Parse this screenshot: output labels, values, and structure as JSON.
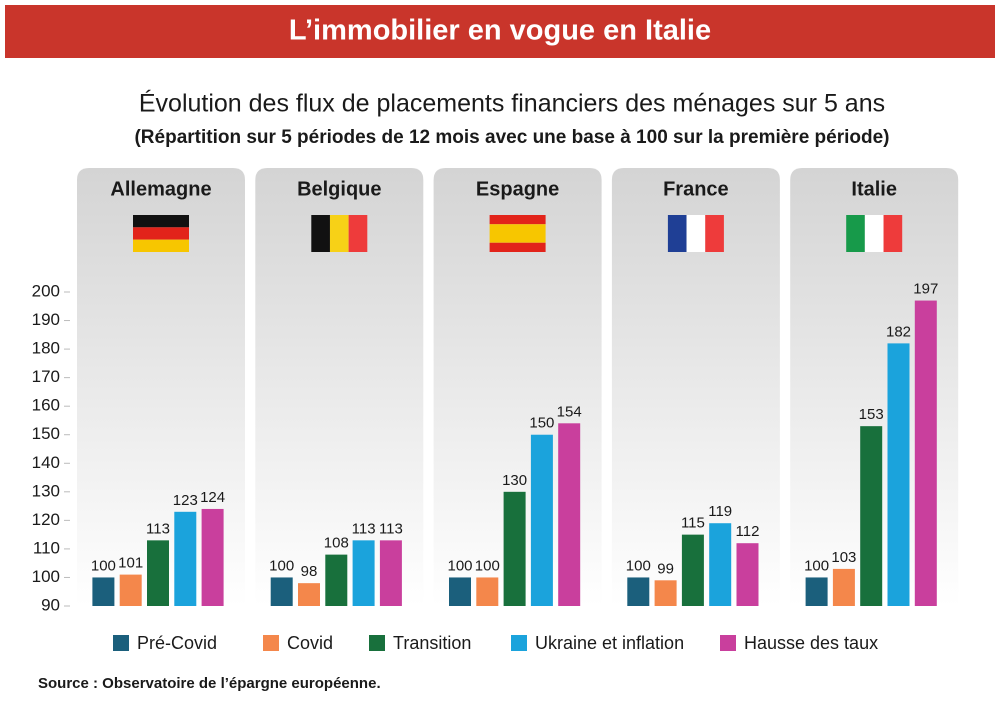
{
  "header": "L’immobilier en vogue en Italie",
  "chart_data": {
    "type": "bar",
    "title": "Évolution des flux de placements financiers des ménages sur 5 ans",
    "subtitle": "(Répartition sur 5 périodes de 12 mois avec une base à 100 sur la première période)",
    "categories": [
      "Allemagne",
      "Belgique",
      "Espagne",
      "France",
      "Italie"
    ],
    "series": [
      {
        "name": "Pré-Covid",
        "color": "#1b5f7c",
        "values": [
          100,
          100,
          100,
          100,
          100
        ]
      },
      {
        "name": "Covid",
        "color": "#f4874b",
        "values": [
          101,
          98,
          100,
          99,
          103
        ]
      },
      {
        "name": "Transition",
        "color": "#18703c",
        "values": [
          113,
          108,
          130,
          115,
          153
        ]
      },
      {
        "name": "Ukraine et inflation",
        "color": "#1ba3dc",
        "values": [
          123,
          113,
          150,
          119,
          182
        ]
      },
      {
        "name": "Hausse des taux",
        "color": "#c93f9d",
        "values": [
          124,
          113,
          154,
          112,
          197
        ]
      }
    ],
    "ylim": [
      90,
      200
    ],
    "yticks": [
      90,
      100,
      110,
      120,
      130,
      140,
      150,
      160,
      170,
      180,
      190,
      200
    ],
    "source": "Source : Observatoire de l’épargne européenne."
  }
}
